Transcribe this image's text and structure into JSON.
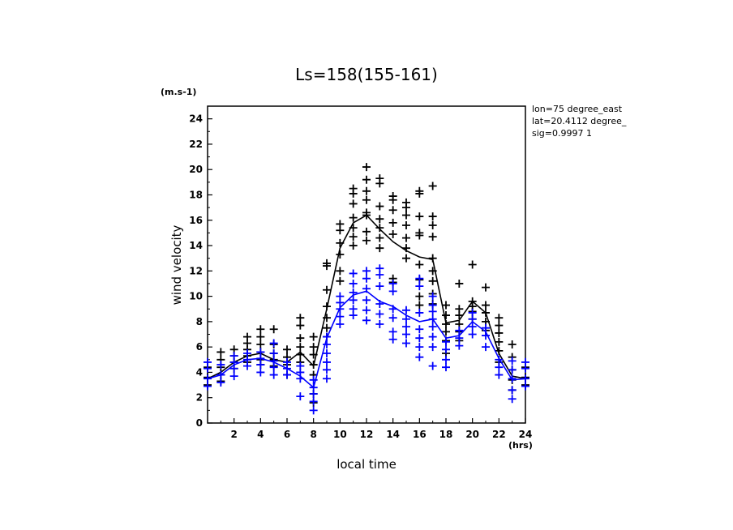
{
  "chart_data": {
    "type": "scatter",
    "title": "Ls=158(155-161)",
    "xlabel": "local time",
    "ylabel": "wind velocity",
    "x_unit": "(hrs)",
    "y_unit": "(m.s-1)",
    "xlim": [
      0,
      24
    ],
    "ylim": [
      0,
      25
    ],
    "x_ticks": [
      2,
      4,
      6,
      8,
      10,
      12,
      14,
      16,
      18,
      20,
      22,
      24
    ],
    "y_ticks": [
      0,
      2,
      4,
      6,
      8,
      10,
      12,
      14,
      16,
      18,
      20,
      22,
      24
    ],
    "annotations": [
      "lon=75 degree_east",
      "lat=20.4112 degree_",
      "sig=0.9997 1"
    ],
    "grid": false,
    "legend": "none",
    "series": [
      {
        "color": "#000000",
        "line": [
          [
            0,
            3.5
          ],
          [
            1,
            4.0
          ],
          [
            2,
            4.8
          ],
          [
            3,
            5.3
          ],
          [
            4,
            5.5
          ],
          [
            5,
            5.0
          ],
          [
            6,
            4.8
          ],
          [
            7,
            5.6
          ],
          [
            8,
            4.5
          ],
          [
            9,
            9.0
          ],
          [
            10,
            13.8
          ],
          [
            11,
            15.8
          ],
          [
            12,
            16.4
          ],
          [
            13,
            15.3
          ],
          [
            14,
            14.3
          ],
          [
            15,
            13.6
          ],
          [
            16,
            13.1
          ],
          [
            17,
            12.9
          ],
          [
            18,
            7.9
          ],
          [
            19,
            8.1
          ],
          [
            20,
            9.6
          ],
          [
            21,
            8.7
          ],
          [
            22,
            5.5
          ],
          [
            23,
            3.7
          ],
          [
            24,
            3.5
          ]
        ],
        "points": [
          [
            0,
            4.4
          ],
          [
            0,
            3.6
          ],
          [
            0,
            3.0
          ],
          [
            1,
            5.6
          ],
          [
            1,
            5.0
          ],
          [
            1,
            4.4
          ],
          [
            1,
            3.8
          ],
          [
            1,
            3.3
          ],
          [
            2,
            5.8
          ],
          [
            2,
            5.3
          ],
          [
            2,
            4.8
          ],
          [
            2,
            4.3
          ],
          [
            3,
            6.8
          ],
          [
            3,
            6.3
          ],
          [
            3,
            5.8
          ],
          [
            3,
            5.3
          ],
          [
            3,
            4.8
          ],
          [
            4,
            7.4
          ],
          [
            4,
            6.8
          ],
          [
            4,
            6.2
          ],
          [
            4,
            5.6
          ],
          [
            4,
            5.0
          ],
          [
            4,
            4.6
          ],
          [
            5,
            7.4
          ],
          [
            5,
            6.2
          ],
          [
            5,
            5.5
          ],
          [
            5,
            5.0
          ],
          [
            5,
            4.5
          ],
          [
            6,
            5.8
          ],
          [
            6,
            5.2
          ],
          [
            6,
            4.6
          ],
          [
            6,
            3.8
          ],
          [
            7,
            8.3
          ],
          [
            7,
            7.7
          ],
          [
            7,
            6.7
          ],
          [
            7,
            6.0
          ],
          [
            7,
            5.4
          ],
          [
            7,
            4.8
          ],
          [
            8,
            6.8
          ],
          [
            8,
            6.0
          ],
          [
            8,
            5.4
          ],
          [
            8,
            4.6
          ],
          [
            8,
            3.8
          ],
          [
            8,
            2.3
          ],
          [
            8,
            1.6
          ],
          [
            9,
            12.6
          ],
          [
            9,
            12.4
          ],
          [
            9,
            10.5
          ],
          [
            9,
            9.2
          ],
          [
            9,
            8.3
          ],
          [
            9,
            7.5
          ],
          [
            9,
            6.8
          ],
          [
            10,
            15.7
          ],
          [
            10,
            15.2
          ],
          [
            10,
            14.2
          ],
          [
            10,
            13.3
          ],
          [
            10,
            12.0
          ],
          [
            10,
            11.2
          ],
          [
            11,
            18.5
          ],
          [
            11,
            18.1
          ],
          [
            11,
            17.3
          ],
          [
            11,
            16.2
          ],
          [
            11,
            15.4
          ],
          [
            11,
            14.7
          ],
          [
            11,
            14.0
          ],
          [
            12,
            20.2
          ],
          [
            12,
            19.2
          ],
          [
            12,
            18.3
          ],
          [
            12,
            17.6
          ],
          [
            12,
            16.6
          ],
          [
            12,
            16.4
          ],
          [
            12,
            15.1
          ],
          [
            12,
            14.4
          ],
          [
            13,
            19.3
          ],
          [
            13,
            18.9
          ],
          [
            13,
            17.1
          ],
          [
            13,
            16.1
          ],
          [
            13,
            15.4
          ],
          [
            13,
            14.6
          ],
          [
            13,
            13.8
          ],
          [
            14,
            17.9
          ],
          [
            14,
            17.6
          ],
          [
            14,
            16.8
          ],
          [
            14,
            15.8
          ],
          [
            14,
            14.9
          ],
          [
            14,
            11.4
          ],
          [
            14,
            11.1
          ],
          [
            15,
            17.4
          ],
          [
            15,
            17.0
          ],
          [
            15,
            16.4
          ],
          [
            15,
            15.6
          ],
          [
            15,
            14.6
          ],
          [
            15,
            13.8
          ],
          [
            15,
            13.0
          ],
          [
            16,
            18.3
          ],
          [
            16,
            18.1
          ],
          [
            16,
            16.3
          ],
          [
            16,
            15.0
          ],
          [
            16,
            14.8
          ],
          [
            16,
            12.5
          ],
          [
            16,
            11.3
          ],
          [
            16,
            10.0
          ],
          [
            16,
            9.3
          ],
          [
            17,
            18.7
          ],
          [
            17,
            16.3
          ],
          [
            17,
            15.6
          ],
          [
            17,
            14.7
          ],
          [
            17,
            13.0
          ],
          [
            17,
            12.0
          ],
          [
            17,
            11.2
          ],
          [
            17,
            10.2
          ],
          [
            17,
            9.4
          ],
          [
            18,
            9.3
          ],
          [
            18,
            8.5
          ],
          [
            18,
            7.8
          ],
          [
            18,
            7.2
          ],
          [
            18,
            6.5
          ],
          [
            18,
            5.5
          ],
          [
            19,
            11.0
          ],
          [
            19,
            9.0
          ],
          [
            19,
            8.5
          ],
          [
            19,
            7.8
          ],
          [
            19,
            7.2
          ],
          [
            19,
            6.5
          ],
          [
            20,
            12.5
          ],
          [
            20,
            9.6
          ],
          [
            20,
            9.2
          ],
          [
            20,
            8.8
          ],
          [
            20,
            8.2
          ],
          [
            21,
            10.7
          ],
          [
            21,
            9.3
          ],
          [
            21,
            8.7
          ],
          [
            21,
            8.0
          ],
          [
            21,
            7.3
          ],
          [
            22,
            8.3
          ],
          [
            22,
            7.7
          ],
          [
            22,
            7.1
          ],
          [
            22,
            6.4
          ],
          [
            22,
            5.7
          ],
          [
            22,
            4.8
          ],
          [
            23,
            6.2
          ],
          [
            23,
            5.2
          ],
          [
            23,
            4.2
          ],
          [
            23,
            3.4
          ],
          [
            23,
            2.6
          ],
          [
            24,
            4.4
          ],
          [
            24,
            3.6
          ],
          [
            24,
            3.0
          ]
        ]
      },
      {
        "color": "#0000ff",
        "line": [
          [
            0,
            3.5
          ],
          [
            1,
            3.8
          ],
          [
            2,
            4.6
          ],
          [
            3,
            5.0
          ],
          [
            4,
            5.1
          ],
          [
            5,
            4.8
          ],
          [
            6,
            4.3
          ],
          [
            7,
            3.7
          ],
          [
            8,
            2.8
          ],
          [
            9,
            6.7
          ],
          [
            10,
            9.1
          ],
          [
            11,
            10.1
          ],
          [
            12,
            10.4
          ],
          [
            13,
            9.6
          ],
          [
            14,
            9.2
          ],
          [
            15,
            8.5
          ],
          [
            16,
            8.0
          ],
          [
            17,
            8.2
          ],
          [
            18,
            6.7
          ],
          [
            19,
            6.9
          ],
          [
            20,
            8.0
          ],
          [
            21,
            7.2
          ],
          [
            22,
            5.1
          ],
          [
            23,
            3.4
          ],
          [
            24,
            3.5
          ]
        ],
        "points": [
          [
            0,
            4.8
          ],
          [
            0,
            4.3
          ],
          [
            0,
            3.5
          ],
          [
            0,
            2.9
          ],
          [
            1,
            4.6
          ],
          [
            1,
            3.8
          ],
          [
            1,
            3.2
          ],
          [
            2,
            5.3
          ],
          [
            2,
            4.8
          ],
          [
            2,
            4.3
          ],
          [
            2,
            3.7
          ],
          [
            3,
            5.5
          ],
          [
            3,
            5.0
          ],
          [
            3,
            4.5
          ],
          [
            4,
            5.6
          ],
          [
            4,
            5.1
          ],
          [
            4,
            4.6
          ],
          [
            4,
            4.0
          ],
          [
            5,
            6.3
          ],
          [
            5,
            5.5
          ],
          [
            5,
            4.9
          ],
          [
            5,
            4.4
          ],
          [
            5,
            3.8
          ],
          [
            6,
            4.8
          ],
          [
            6,
            4.3
          ],
          [
            6,
            3.8
          ],
          [
            7,
            4.5
          ],
          [
            7,
            4.0
          ],
          [
            7,
            3.5
          ],
          [
            7,
            2.1
          ],
          [
            8,
            3.4
          ],
          [
            8,
            2.8
          ],
          [
            8,
            2.3
          ],
          [
            8,
            1.7
          ],
          [
            8,
            1.0
          ],
          [
            9,
            6.8
          ],
          [
            9,
            6.2
          ],
          [
            9,
            5.5
          ],
          [
            9,
            4.8
          ],
          [
            9,
            4.2
          ],
          [
            9,
            3.5
          ],
          [
            10,
            10.0
          ],
          [
            10,
            9.5
          ],
          [
            10,
            9.0
          ],
          [
            10,
            8.4
          ],
          [
            10,
            7.8
          ],
          [
            11,
            11.8
          ],
          [
            11,
            11.0
          ],
          [
            11,
            10.3
          ],
          [
            11,
            9.7
          ],
          [
            11,
            9.0
          ],
          [
            11,
            8.5
          ],
          [
            12,
            12.0
          ],
          [
            12,
            11.4
          ],
          [
            12,
            10.6
          ],
          [
            12,
            9.7
          ],
          [
            12,
            8.9
          ],
          [
            12,
            8.1
          ],
          [
            13,
            12.2
          ],
          [
            13,
            11.7
          ],
          [
            13,
            10.8
          ],
          [
            13,
            9.4
          ],
          [
            13,
            8.6
          ],
          [
            13,
            7.8
          ],
          [
            14,
            11.0
          ],
          [
            14,
            10.4
          ],
          [
            14,
            9.0
          ],
          [
            14,
            8.3
          ],
          [
            14,
            7.2
          ],
          [
            14,
            6.6
          ],
          [
            15,
            8.9
          ],
          [
            15,
            8.2
          ],
          [
            15,
            7.6
          ],
          [
            15,
            7.0
          ],
          [
            15,
            6.3
          ],
          [
            16,
            11.4
          ],
          [
            16,
            10.8
          ],
          [
            16,
            8.7
          ],
          [
            16,
            7.4
          ],
          [
            16,
            6.7
          ],
          [
            16,
            6.0
          ],
          [
            16,
            5.2
          ],
          [
            17,
            10.0
          ],
          [
            17,
            9.3
          ],
          [
            17,
            8.8
          ],
          [
            17,
            8.2
          ],
          [
            17,
            7.6
          ],
          [
            17,
            6.8
          ],
          [
            17,
            6.0
          ],
          [
            17,
            4.5
          ],
          [
            18,
            6.4
          ],
          [
            18,
            5.8
          ],
          [
            18,
            5.0
          ],
          [
            18,
            4.4
          ],
          [
            19,
            7.3
          ],
          [
            19,
            6.7
          ],
          [
            19,
            6.1
          ],
          [
            20,
            8.7
          ],
          [
            20,
            8.2
          ],
          [
            20,
            7.6
          ],
          [
            20,
            7.0
          ],
          [
            21,
            7.5
          ],
          [
            21,
            6.9
          ],
          [
            21,
            6.0
          ],
          [
            22,
            5.0
          ],
          [
            22,
            4.4
          ],
          [
            22,
            3.8
          ],
          [
            23,
            4.9
          ],
          [
            23,
            4.2
          ],
          [
            23,
            3.5
          ],
          [
            23,
            2.6
          ],
          [
            23,
            1.9
          ],
          [
            24,
            4.8
          ],
          [
            24,
            4.3
          ],
          [
            24,
            3.5
          ],
          [
            24,
            2.9
          ]
        ]
      }
    ]
  }
}
